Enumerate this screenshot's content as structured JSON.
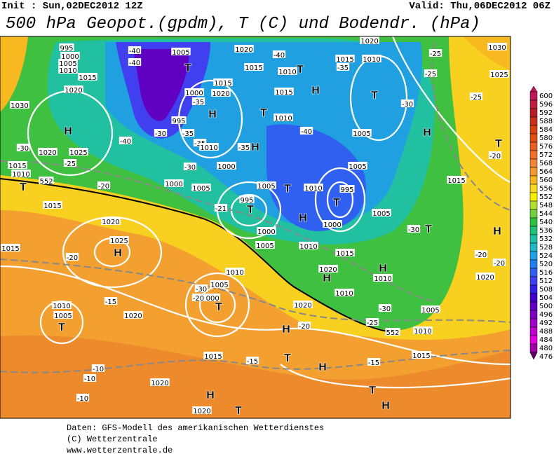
{
  "header": {
    "init": "Init : Sun,02DEC2012 12Z",
    "valid": "Valid: Thu,06DEC2012 06Z",
    "title": "500 hPa Geopot.(gpdm), T (C) und Bodendr. (hPa)"
  },
  "colorbar": {
    "values": [
      600,
      596,
      592,
      588,
      584,
      580,
      576,
      572,
      568,
      564,
      560,
      556,
      552,
      548,
      544,
      540,
      536,
      532,
      528,
      524,
      520,
      516,
      512,
      508,
      504,
      500,
      496,
      492,
      488,
      484,
      480,
      476
    ],
    "colors": [
      "#c0185a",
      "#c02040",
      "#b81c28",
      "#c83018",
      "#d84010",
      "#e05010",
      "#e86020",
      "#f07028",
      "#f08438",
      "#f49a30",
      "#f8b820",
      "#f8d820",
      "#f8f000",
      "#b0e030",
      "#70d040",
      "#30c040",
      "#20c078",
      "#20c0a8",
      "#20b8c8",
      "#20a0e8",
      "#2080f0",
      "#3060f0",
      "#4040f0",
      "#3020e0",
      "#4000c8",
      "#6000c0",
      "#8000c0",
      "#a000c8",
      "#c000d0",
      "#e000e0",
      "#a000a8",
      "#600060"
    ]
  },
  "map_labels": [
    "995",
    "1000",
    "1005",
    "1010",
    "1015",
    "1020",
    "1030",
    "H",
    "-30",
    "1020",
    "1025",
    "1015",
    "-25",
    "1010",
    "-20",
    "T",
    "552",
    "1015",
    "1020",
    "1025",
    "H",
    "1015",
    "-20",
    "-15",
    "1020",
    "1010",
    "1005",
    "T",
    "-10",
    "-10",
    "-10",
    "1020",
    "H",
    "1020",
    "T",
    "-40",
    "-40",
    "1005",
    "T",
    "1015",
    "1020",
    "1000",
    "-35",
    "H",
    "995",
    "-30",
    "-35",
    "-35",
    "1010",
    "-40",
    "-30",
    "1000",
    "1005",
    "-21",
    "1020",
    "-40",
    "1015",
    "1010",
    "T",
    "1015",
    "T",
    "1010",
    "H",
    "-35",
    "-40",
    "H",
    "1005",
    "1000",
    "995",
    "T",
    "1005",
    "T",
    "1010",
    "995",
    "T",
    "1000",
    "H",
    "1000",
    "1005",
    "1010",
    "1015",
    "1020",
    "H",
    "H",
    "1010",
    "1010",
    "1005",
    "-30",
    "-25",
    "1010",
    "552",
    "1015",
    "-15",
    "T",
    "H",
    "H",
    "H",
    "-20",
    "T",
    "-15",
    "1015",
    "1020",
    "1010",
    "1005",
    "1000",
    "T",
    "-30",
    "-20",
    "1020",
    "1010",
    "1015",
    "-35",
    "T",
    "-30",
    "1005",
    "H",
    "-25",
    "-25",
    "-25",
    "1030",
    "1025",
    "T",
    "-20",
    "1015",
    "1005",
    "-30",
    "T",
    "H",
    "-20",
    "-20",
    "1020"
  ],
  "footer": {
    "lines": [
      "Daten: GFS-Modell des amerikanischen Wetterdienstes",
      "(C) Wetterzentrale",
      "www.wetterzentrale.de"
    ]
  }
}
